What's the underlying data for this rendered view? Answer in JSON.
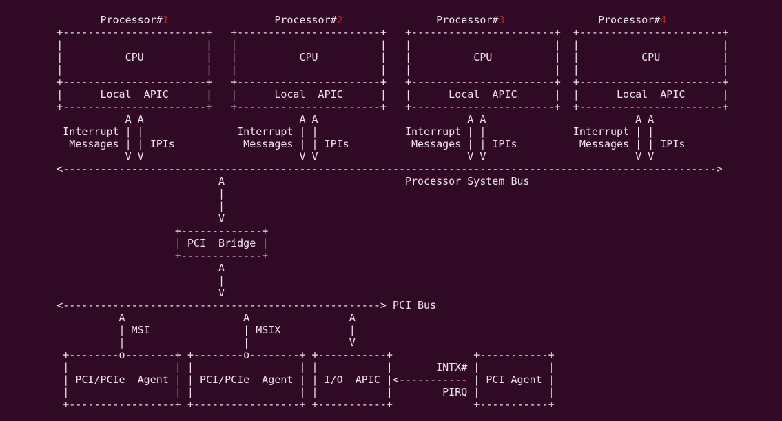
{
  "colors": {
    "background": "#300a24",
    "foreground": "#ece4ec",
    "accent_red": "#c01c28"
  },
  "diagram": {
    "processor_titles": [
      {
        "prefix": "Processor#",
        "number": "1"
      },
      {
        "prefix": "Processor#",
        "number": "2"
      },
      {
        "prefix": "Processor#",
        "number": "3"
      },
      {
        "prefix": "Processor#",
        "number": "4"
      }
    ],
    "labels": {
      "cpu": "CPU",
      "local_apic": "Local  APIC",
      "interrupt_messages": "Interrupt Messages",
      "ipis": "IPIs",
      "system_bus": "Processor System Bus",
      "pci_bridge": "PCI  Bridge",
      "pci_bus": "PCI Bus",
      "msi": "MSI",
      "msix": "MSIX",
      "pci_pcie_agent": "PCI/PCIe  Agent",
      "io_apic": "I/O  APIC",
      "intx": "INTX#",
      "pirq": "PIRQ",
      "pci_agent": "PCI Agent"
    },
    "rows": [
      [
        "               Processor#",
        {
          "t": "1",
          "c": "red"
        },
        "                 Processor#",
        {
          "t": "2",
          "c": "red"
        },
        "               Processor#",
        {
          "t": "3",
          "c": "red"
        },
        "               Processor#",
        {
          "t": "4",
          "c": "red"
        }
      ],
      [
        "        +-----------------------+   +-----------------------+   +-----------------------+  +-----------------------+"
      ],
      [
        "        |                       |   |                       |   |                       |  |                       |"
      ],
      [
        "        |          CPU          |   |          CPU          |   |          CPU          |  |          CPU          |"
      ],
      [
        "        |                       |   |                       |   |                       |  |                       |"
      ],
      [
        "        +-----------------------+   +-----------------------+   +-----------------------+  +-----------------------+"
      ],
      [
        "        |      Local  APIC      |   |      Local  APIC      |   |      Local  APIC      |  |      Local  APIC      |"
      ],
      [
        "        +-----------------------+   +-----------------------+   +-----------------------+  +-----------------------+"
      ],
      [
        "                   A A                         A A                        A A                        A A"
      ],
      [
        "         Interrupt | |               Interrupt | |              Interrupt | |              Interrupt | |"
      ],
      [
        "          Messages | | IPIs           Messages | | IPIs          Messages | | IPIs          Messages | | IPIs"
      ],
      [
        "                   V V                         V V                        V V                        V V"
      ],
      [
        "        <--------------------------------------------------------------------------------------------------------->"
      ],
      [
        "                                  A                             Processor System Bus"
      ],
      [
        "                                  |"
      ],
      [
        "                                  |"
      ],
      [
        "                                  V"
      ],
      [
        "                           +-------------+"
      ],
      [
        "                           | PCI  Bridge |"
      ],
      [
        "                           +-------------+"
      ],
      [
        "                                  A"
      ],
      [
        "                                  |"
      ],
      [
        "                                  V"
      ],
      [
        "        <---------------------------------------------------> PCI Bus"
      ],
      [
        "                  A                   A                A"
      ],
      [
        "                  | MSI               | MSIX           |"
      ],
      [
        "                  |                   |                V"
      ],
      [
        "         +--------o--------+ +--------o--------+ +-----------+             +-----------+"
      ],
      [
        "         |                 | |                 | |           |       INTX# |           |"
      ],
      [
        "         | PCI/PCIe  Agent | | PCI/PCIe  Agent | | I/O  APIC |<----------- | PCI Agent |"
      ],
      [
        "         |                 | |                 | |           |        PIRQ |           |"
      ],
      [
        "         +-----------------+ +-----------------+ +-----------+             +-----------+"
      ]
    ]
  }
}
